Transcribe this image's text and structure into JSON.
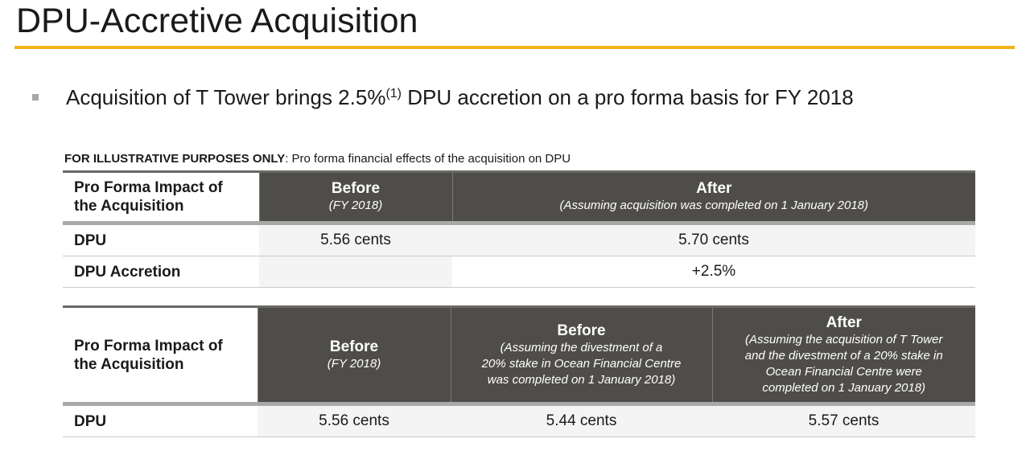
{
  "slide": {
    "title": "DPU-Accretive Acquisition",
    "accent_color": "#f0b41a",
    "bullet": {
      "text_before": "Acquisition of T Tower brings 2.5%",
      "footnote_ref": "(1)",
      "text_after": " DPU accretion on a pro forma basis for FY 2018"
    },
    "caption": {
      "bold": "FOR ILLUSTRATIVE PURPOSES ONLY",
      "rest": ": Pro forma financial effects of the acquisition on DPU"
    }
  },
  "table1": {
    "row_header_line1": "Pro Forma Impact of",
    "row_header_line2": "the Acquisition",
    "col_before": {
      "title": "Before",
      "sub": "(FY 2018)"
    },
    "col_after": {
      "title": "After",
      "sub": "(Assuming acquisition was completed on 1 January 2018)"
    },
    "rows": [
      {
        "label": "DPU",
        "before": "5.56 cents",
        "after": "5.70 cents"
      },
      {
        "label": "DPU Accretion",
        "before": "",
        "after": "+2.5%"
      }
    ]
  },
  "table2": {
    "row_header_line1": "Pro Forma Impact of",
    "row_header_line2": "the Acquisition",
    "col_before": {
      "title": "Before",
      "sub": "(FY 2018)"
    },
    "col_before_divest": {
      "title": "Before",
      "sub_lines": [
        "(Assuming the divestment of a",
        "20% stake in Ocean Financial Centre",
        "was completed on 1 January 2018)"
      ]
    },
    "col_after": {
      "title": "After",
      "sub_lines": [
        "(Assuming the acquisition of T Tower",
        "and the divestment of a 20% stake in",
        "Ocean Financial Centre were",
        "completed on 1 January 2018)"
      ]
    },
    "rows": [
      {
        "label": "DPU",
        "before": "5.56 cents",
        "before_divest": "5.44 cents",
        "after": "5.57 cents"
      }
    ]
  }
}
